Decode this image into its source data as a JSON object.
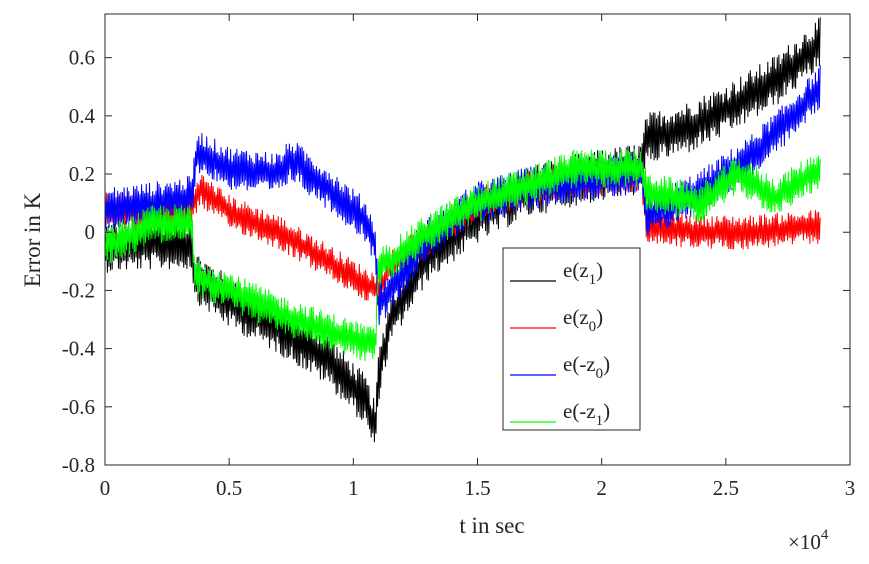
{
  "chart_data": {
    "type": "line",
    "title": "",
    "xlabel": "t in sec",
    "ylabel": "Error in K",
    "x_multiplier_label": "×10",
    "x_multiplier_exp": "4",
    "xlim": [
      0,
      3
    ],
    "ylim": [
      -0.8,
      0.75
    ],
    "x_ticks": [
      "0",
      "0.5",
      "1",
      "1.5",
      "2",
      "2.5",
      "3"
    ],
    "y_ticks": [
      "-0.8",
      "-0.6",
      "-0.4",
      "-0.2",
      "0",
      "0.2",
      "0.4",
      "0.6"
    ],
    "grid": false,
    "legend_position": "lower-right-center",
    "series": [
      {
        "name": "e(z₁)",
        "label_main": "e(z",
        "label_sub": "1",
        "label_end": ")",
        "color": "#000000",
        "noise": 0.06,
        "anchors": [
          [
            0,
            -0.05
          ],
          [
            0.2,
            -0.04
          ],
          [
            0.35,
            -0.04
          ],
          [
            0.36,
            -0.15
          ],
          [
            0.5,
            -0.24
          ],
          [
            0.7,
            -0.33
          ],
          [
            0.9,
            -0.44
          ],
          [
            1.05,
            -0.58
          ],
          [
            1.09,
            -0.68
          ],
          [
            1.1,
            -0.5
          ],
          [
            1.15,
            -0.3
          ],
          [
            1.3,
            -0.08
          ],
          [
            1.5,
            0.05
          ],
          [
            1.7,
            0.14
          ],
          [
            1.9,
            0.18
          ],
          [
            2.16,
            0.22
          ],
          [
            2.18,
            0.32
          ],
          [
            2.35,
            0.36
          ],
          [
            2.5,
            0.42
          ],
          [
            2.7,
            0.52
          ],
          [
            2.88,
            0.65
          ]
        ]
      },
      {
        "name": "e(z₀)",
        "label_main": "e(z",
        "label_sub": "0",
        "label_end": ")",
        "color": "#ff0000",
        "noise": 0.04,
        "anchors": [
          [
            0,
            0.08
          ],
          [
            0.2,
            0.06
          ],
          [
            0.35,
            0.08
          ],
          [
            0.38,
            0.15
          ],
          [
            0.5,
            0.07
          ],
          [
            0.7,
            0.0
          ],
          [
            0.9,
            -0.1
          ],
          [
            1.05,
            -0.18
          ],
          [
            1.1,
            -0.2
          ],
          [
            1.15,
            -0.12
          ],
          [
            1.3,
            -0.02
          ],
          [
            1.5,
            0.1
          ],
          [
            1.7,
            0.15
          ],
          [
            1.9,
            0.18
          ],
          [
            2.16,
            0.2
          ],
          [
            2.18,
            0.02
          ],
          [
            2.4,
            0.0
          ],
          [
            2.6,
            0.0
          ],
          [
            2.88,
            0.02
          ]
        ]
      },
      {
        "name": "e(-z₀)",
        "label_main": "e(-z",
        "label_sub": "0",
        "label_end": ")",
        "color": "#0000ff",
        "noise": 0.05,
        "anchors": [
          [
            0,
            0.08
          ],
          [
            0.2,
            0.1
          ],
          [
            0.35,
            0.12
          ],
          [
            0.37,
            0.28
          ],
          [
            0.5,
            0.22
          ],
          [
            0.7,
            0.2
          ],
          [
            0.75,
            0.25
          ],
          [
            0.9,
            0.15
          ],
          [
            1.05,
            0.04
          ],
          [
            1.09,
            -0.05
          ],
          [
            1.1,
            -0.25
          ],
          [
            1.15,
            -0.2
          ],
          [
            1.3,
            -0.02
          ],
          [
            1.5,
            0.1
          ],
          [
            1.7,
            0.15
          ],
          [
            1.9,
            0.18
          ],
          [
            2.16,
            0.2
          ],
          [
            2.18,
            0.05
          ],
          [
            2.4,
            0.14
          ],
          [
            2.6,
            0.26
          ],
          [
            2.75,
            0.38
          ],
          [
            2.88,
            0.5
          ]
        ]
      },
      {
        "name": "e(-z₁)",
        "label_main": "e(-z",
        "label_sub": "1",
        "label_end": ")",
        "color": "#00ff00",
        "noise": 0.045,
        "anchors": [
          [
            0,
            -0.05
          ],
          [
            0.2,
            0.03
          ],
          [
            0.35,
            0.03
          ],
          [
            0.36,
            -0.15
          ],
          [
            0.5,
            -0.2
          ],
          [
            0.7,
            -0.28
          ],
          [
            0.9,
            -0.34
          ],
          [
            1.05,
            -0.38
          ],
          [
            1.09,
            -0.4
          ],
          [
            1.1,
            -0.12
          ],
          [
            1.15,
            -0.1
          ],
          [
            1.3,
            0.0
          ],
          [
            1.5,
            0.1
          ],
          [
            1.7,
            0.16
          ],
          [
            1.9,
            0.22
          ],
          [
            2.16,
            0.22
          ],
          [
            2.18,
            0.14
          ],
          [
            2.4,
            0.1
          ],
          [
            2.55,
            0.2
          ],
          [
            2.7,
            0.12
          ],
          [
            2.88,
            0.22
          ]
        ]
      }
    ]
  }
}
